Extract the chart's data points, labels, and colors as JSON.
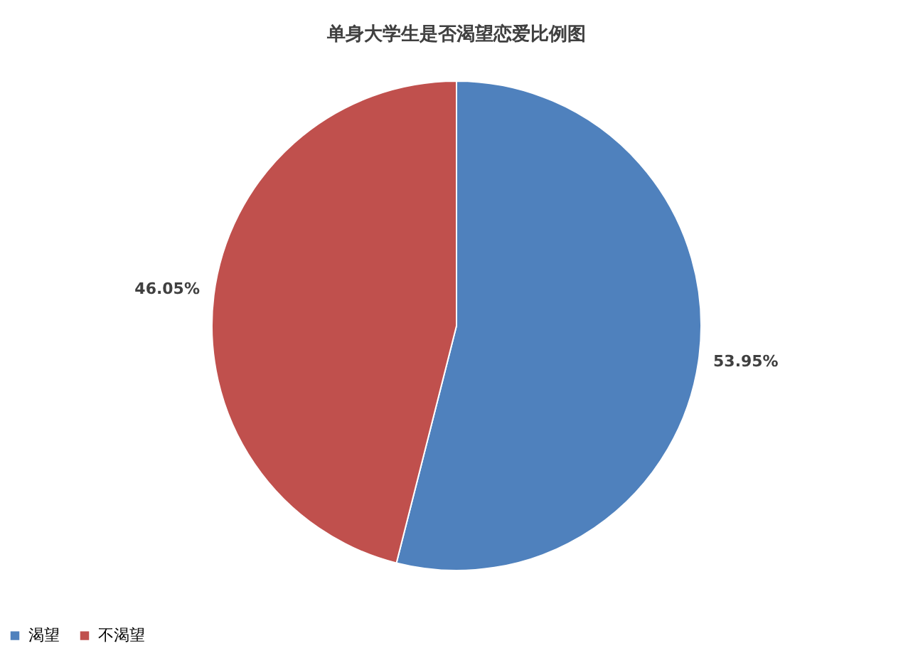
{
  "chart_data": {
    "type": "pie",
    "title": "单身大学生是否渴望恋爱比例图",
    "categories": [
      "渴望",
      "不渴望"
    ],
    "values": [
      53.95,
      46.05
    ],
    "colors": [
      "#4f81bd",
      "#c0504d"
    ],
    "value_labels": [
      "53.95%",
      "46.05%"
    ],
    "legend": "bottom"
  }
}
